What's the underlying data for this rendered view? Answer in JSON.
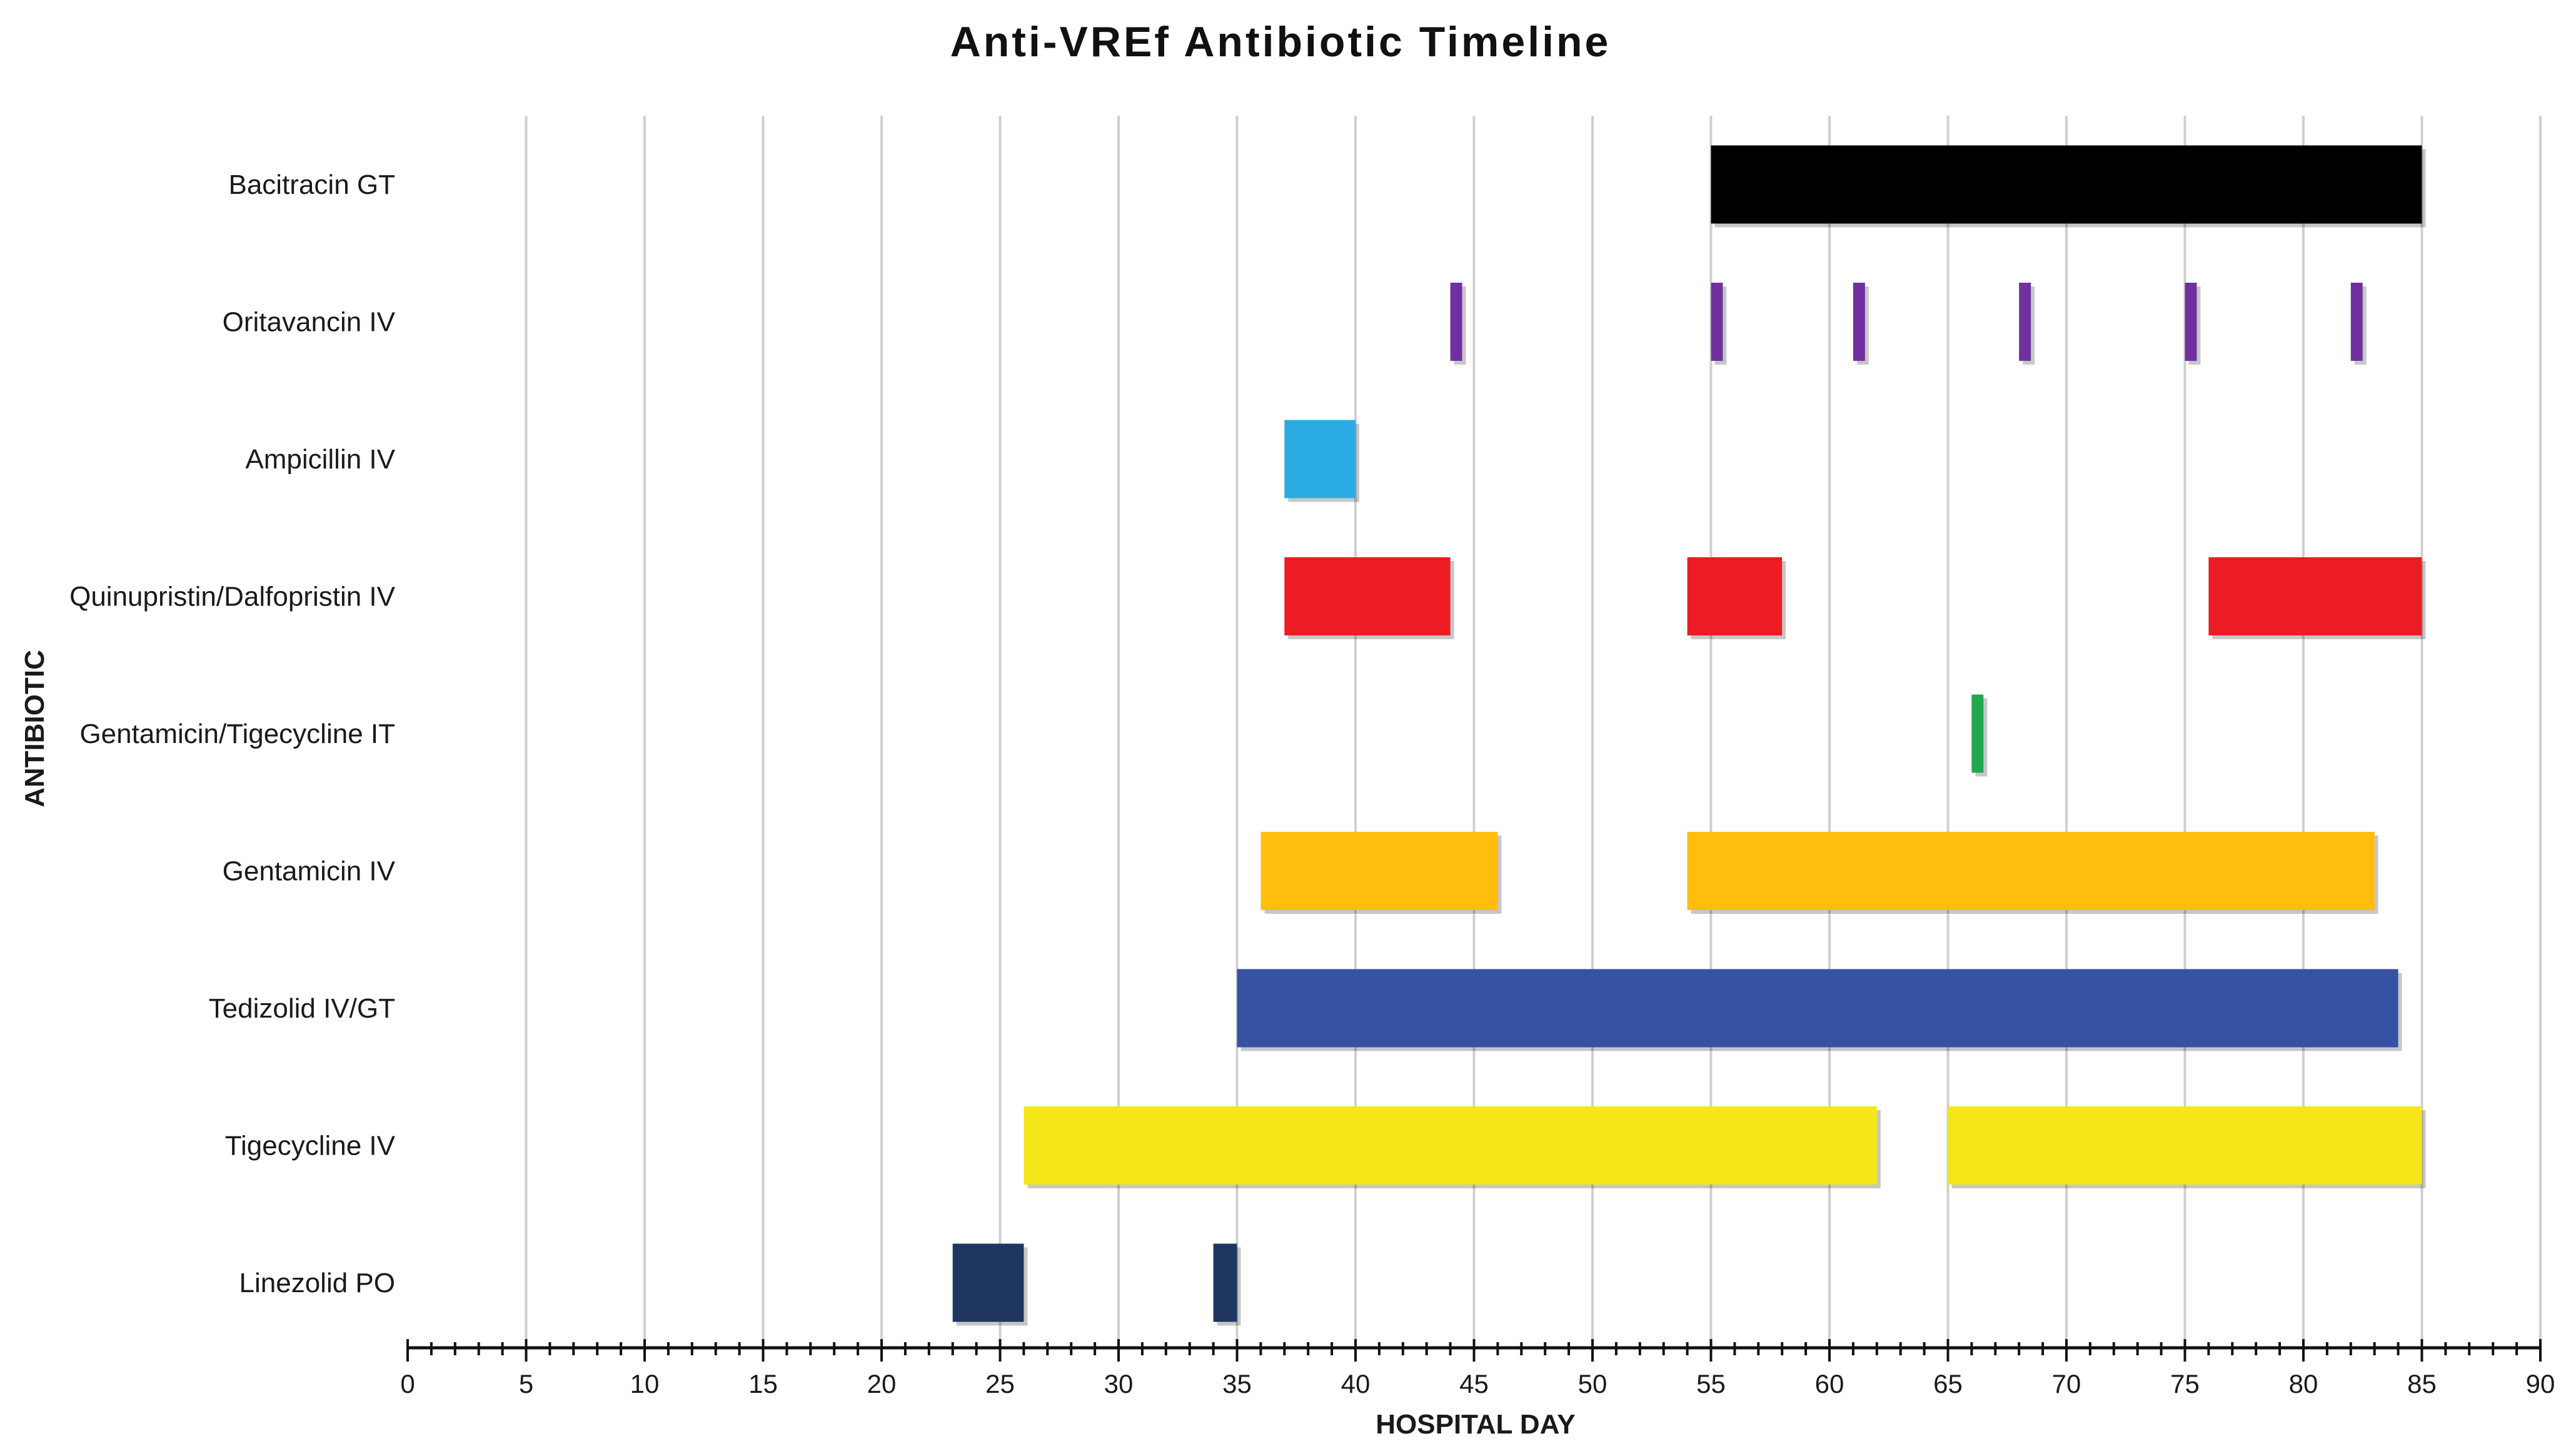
{
  "chart_data": {
    "type": "gantt",
    "title": "Anti-VREf Antibiotic Timeline",
    "xlabel": "HOSPITAL DAY",
    "ylabel": "ANTIBIOTIC",
    "xlim": [
      0,
      90
    ],
    "x_major_step": 5,
    "x_minor_step": 1,
    "grid": "vertical",
    "categories": [
      "Bacitracin GT",
      "Oritavancin IV",
      "Ampicillin IV",
      "Quinupristin/Dalfopristin IV",
      "Gentamicin/Tigecycline IT",
      "Gentamicin IV",
      "Tedizolid IV/GT",
      "Tigecycline IV",
      "Linezolid PO"
    ],
    "series": [
      {
        "name": "Bacitracin GT",
        "color": "#000000",
        "intervals": [
          [
            55,
            85
          ]
        ]
      },
      {
        "name": "Oritavancin IV",
        "color": "#7030a0",
        "intervals": [
          [
            44,
            44.5
          ],
          [
            55,
            55.5
          ],
          [
            61,
            61.5
          ],
          [
            68,
            68.5
          ],
          [
            75,
            75.5
          ],
          [
            82,
            82.5
          ]
        ]
      },
      {
        "name": "Ampicillin IV",
        "color": "#29abe2",
        "intervals": [
          [
            37,
            40
          ]
        ]
      },
      {
        "name": "Quinupristin/Dalfopristin IV",
        "color": "#ed1c24",
        "intervals": [
          [
            37,
            44
          ],
          [
            54,
            58
          ],
          [
            76,
            85
          ]
        ]
      },
      {
        "name": "Gentamicin/Tigecycline IT",
        "color": "#1fa84f",
        "intervals": [
          [
            66,
            66.5
          ]
        ]
      },
      {
        "name": "Gentamicin IV",
        "color": "#ffbd0d",
        "intervals": [
          [
            36,
            46
          ],
          [
            54,
            83
          ]
        ]
      },
      {
        "name": "Tedizolid IV/GT",
        "color": "#3652a2",
        "intervals": [
          [
            35,
            84
          ]
        ]
      },
      {
        "name": "Tigecycline IV",
        "color": "#f5e61a",
        "intervals": [
          [
            26,
            62
          ],
          [
            65,
            85
          ]
        ]
      },
      {
        "name": "Linezolid PO",
        "color": "#1e3660",
        "intervals": [
          [
            23,
            26
          ],
          [
            34,
            35
          ]
        ]
      }
    ]
  }
}
